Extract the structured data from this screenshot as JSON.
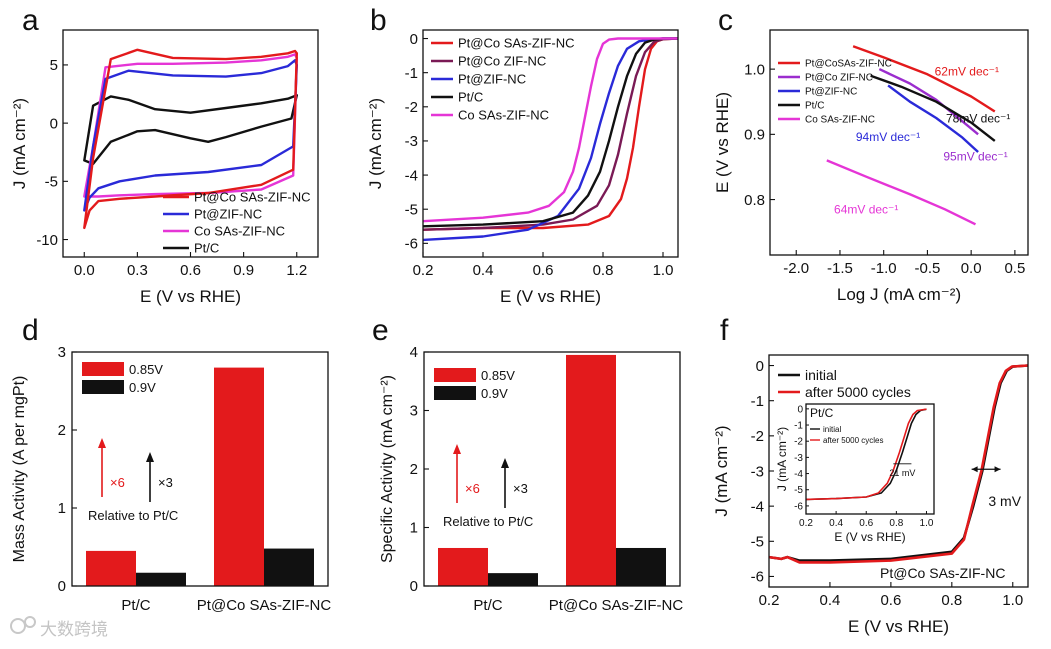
{
  "watermark": "大数跨境",
  "colors": {
    "red": "#e31a1c",
    "purple": "#9b2dce",
    "blue": "#2a2ad8",
    "black": "#111111",
    "magenta": "#e535d6",
    "darkred": "#b0142a"
  },
  "chart_data": [
    {
      "id": "a",
      "type": "line",
      "panel_label": "a",
      "xlabel": "E (V vs RHE)",
      "ylabel": "J (mA cm⁻²)",
      "xlim": [
        -0.12,
        1.32
      ],
      "ylim": [
        -11.5,
        8
      ],
      "xticks": [
        0.0,
        0.3,
        0.6,
        0.9,
        1.2
      ],
      "yticks": [
        5,
        0,
        -5,
        -10
      ],
      "xticklabels": [
        "0.0",
        "0.3",
        "0.6",
        "0.9",
        "1.2"
      ],
      "yticklabels": [
        "5",
        "0",
        "-5",
        "-10"
      ],
      "legend": {
        "position": "bottom-right",
        "entries": [
          "Pt@Co SAs-ZIF-NC",
          "Pt@ZIF-NC",
          "Co SAs-ZIF-NC",
          "Pt/C"
        ]
      },
      "series": [
        {
          "name": "Pt@Co SAs-ZIF-NC",
          "color": "#e31a1c",
          "closed": true,
          "x": [
            0.0,
            0.05,
            0.15,
            0.3,
            0.5,
            0.8,
            1.0,
            1.15,
            1.19,
            1.2,
            1.18,
            1.0,
            0.7,
            0.4,
            0.2,
            0.08,
            0.03,
            0.0
          ],
          "y": [
            -9.0,
            -3.0,
            5.5,
            6.3,
            5.6,
            5.5,
            5.7,
            6.0,
            6.2,
            6.0,
            -4.0,
            -5.3,
            -6.0,
            -6.3,
            -6.5,
            -6.7,
            -7.5,
            -9.0
          ]
        },
        {
          "name": "Pt@ZIF-NC",
          "color": "#2a2ad8",
          "closed": true,
          "x": [
            0.0,
            0.05,
            0.12,
            0.25,
            0.5,
            0.8,
            1.0,
            1.15,
            1.19,
            1.2,
            1.18,
            1.0,
            0.7,
            0.4,
            0.2,
            0.08,
            0.03,
            0.0
          ],
          "y": [
            -7.5,
            -2.0,
            3.8,
            4.5,
            4.1,
            4.0,
            4.3,
            4.9,
            5.4,
            5.0,
            -2.0,
            -3.6,
            -4.2,
            -4.5,
            -5.0,
            -5.6,
            -6.4,
            -7.5
          ]
        },
        {
          "name": "Co SAs-ZIF-NC",
          "color": "#e535d6",
          "closed": true,
          "x": [
            0.0,
            0.05,
            0.12,
            0.3,
            0.5,
            0.8,
            1.0,
            1.15,
            1.19,
            1.2,
            1.18,
            1.0,
            0.7,
            0.4,
            0.2,
            0.08,
            0.03,
            0.0
          ],
          "y": [
            -6.3,
            -2.0,
            4.8,
            5.1,
            5.1,
            5.2,
            5.4,
            5.7,
            5.9,
            5.6,
            -4.5,
            -5.7,
            -6.0,
            -6.1,
            -6.2,
            -6.3,
            -6.3,
            -6.3
          ]
        },
        {
          "name": "Pt/C",
          "color": "#111111",
          "closed": true,
          "x": [
            0.0,
            0.05,
            0.15,
            0.25,
            0.4,
            0.6,
            0.8,
            1.0,
            1.15,
            1.2,
            1.17,
            1.0,
            0.8,
            0.7,
            0.6,
            0.4,
            0.3,
            0.15,
            0.05,
            0.0
          ],
          "y": [
            -3.2,
            1.5,
            2.3,
            2.0,
            1.2,
            0.9,
            1.3,
            1.7,
            2.1,
            2.4,
            0.4,
            -0.3,
            -1.2,
            -1.6,
            -1.3,
            -0.6,
            -0.7,
            -1.6,
            -3.5,
            -3.2
          ]
        }
      ]
    },
    {
      "id": "b",
      "type": "line",
      "panel_label": "b",
      "xlabel": "E (V vs RHE)",
      "ylabel": "J (mA cm⁻²)",
      "xlim": [
        0.2,
        1.05
      ],
      "ylim": [
        -6.4,
        0.25
      ],
      "xticks": [
        0.2,
        0.4,
        0.6,
        0.8,
        1.0
      ],
      "yticks": [
        0,
        -1,
        -2,
        -3,
        -4,
        -5,
        -6
      ],
      "xticklabels": [
        "0.2",
        "0.4",
        "0.6",
        "0.8",
        "1.0"
      ],
      "yticklabels": [
        "0",
        "-1",
        "-2",
        "-3",
        "-4",
        "-5",
        "-6"
      ],
      "legend": {
        "position": "top-left",
        "entries": [
          "Pt@Co SAs-ZIF-NC",
          "Pt@Co ZIF-NC",
          "Pt@ZIF-NC",
          "Pt/C",
          "Co SAs-ZIF-NC"
        ]
      },
      "series": [
        {
          "name": "Pt@Co SAs-ZIF-NC",
          "color": "#e31a1c",
          "x": [
            0.2,
            0.4,
            0.6,
            0.75,
            0.82,
            0.86,
            0.88,
            0.9,
            0.92,
            0.94,
            0.96,
            0.98,
            1.0,
            1.05
          ],
          "y": [
            -5.6,
            -5.55,
            -5.55,
            -5.45,
            -5.2,
            -4.7,
            -4.1,
            -3.2,
            -2.0,
            -0.9,
            -0.3,
            -0.08,
            -0.02,
            0.0
          ]
        },
        {
          "name": "Pt@Co ZIF-NC",
          "color": "#7a1a55",
          "x": [
            0.2,
            0.4,
            0.6,
            0.7,
            0.78,
            0.82,
            0.85,
            0.88,
            0.91,
            0.94,
            0.97,
            1.0,
            1.05
          ],
          "y": [
            -5.6,
            -5.55,
            -5.45,
            -5.3,
            -4.9,
            -4.3,
            -3.4,
            -2.2,
            -1.1,
            -0.4,
            -0.1,
            -0.02,
            0.0
          ]
        },
        {
          "name": "Pt@ZIF-NC",
          "color": "#2a2ad8",
          "x": [
            0.2,
            0.4,
            0.55,
            0.65,
            0.72,
            0.76,
            0.79,
            0.82,
            0.85,
            0.88,
            0.92,
            0.96,
            1.0,
            1.05
          ],
          "y": [
            -5.9,
            -5.8,
            -5.6,
            -5.2,
            -4.4,
            -3.5,
            -2.5,
            -1.6,
            -0.8,
            -0.3,
            -0.08,
            -0.02,
            0.0,
            0.0
          ]
        },
        {
          "name": "Pt/C",
          "color": "#111111",
          "x": [
            0.2,
            0.4,
            0.6,
            0.7,
            0.75,
            0.79,
            0.82,
            0.85,
            0.88,
            0.91,
            0.94,
            0.97,
            1.0,
            1.05
          ],
          "y": [
            -5.5,
            -5.45,
            -5.35,
            -5.1,
            -4.6,
            -3.9,
            -3.0,
            -2.0,
            -1.1,
            -0.45,
            -0.12,
            -0.03,
            0.0,
            0.0
          ]
        },
        {
          "name": "Co SAs-ZIF-NC",
          "color": "#e535d6",
          "x": [
            0.2,
            0.4,
            0.55,
            0.62,
            0.67,
            0.7,
            0.72,
            0.74,
            0.76,
            0.78,
            0.8,
            0.82,
            0.85,
            1.05
          ],
          "y": [
            -5.35,
            -5.25,
            -5.1,
            -4.9,
            -4.5,
            -3.9,
            -3.2,
            -2.3,
            -1.4,
            -0.6,
            -0.15,
            -0.03,
            0.0,
            0.0
          ]
        }
      ]
    },
    {
      "id": "c",
      "type": "line",
      "panel_label": "c",
      "xlabel": "Log J (mA cm⁻²)",
      "ylabel": "E (V vs RHE)",
      "xlim": [
        -2.3,
        0.65
      ],
      "ylim": [
        0.715,
        1.06
      ],
      "xticks": [
        -2.0,
        -1.5,
        -1.0,
        -0.5,
        0.0,
        0.5
      ],
      "yticks": [
        1.0,
        0.9,
        0.8
      ],
      "xticklabels": [
        "-2.0",
        "-1.5",
        "-1.0",
        "-0.5",
        "0.0",
        "0.5"
      ],
      "yticklabels": [
        "1.0",
        "0.9",
        "0.8"
      ],
      "legend": {
        "position": "top-left",
        "entries": [
          "Pt@CoSAs-ZIF-NC",
          "Pt@Co ZIF-NC",
          "Pt@ZIF-NC",
          "Pt/C",
          "Co SAs-ZIF-NC"
        ]
      },
      "annotations": [
        {
          "text": "62mV dec⁻¹",
          "color": "#e31a1c",
          "x": -0.05,
          "y": 0.99
        },
        {
          "text": "78mV dec⁻¹",
          "color": "#111111",
          "x": 0.08,
          "y": 0.918
        },
        {
          "text": "94mV dec⁻¹",
          "color": "#2a2ad8",
          "x": -0.95,
          "y": 0.89
        },
        {
          "text": "95mV dec⁻¹",
          "color": "#9b2dce",
          "x": 0.05,
          "y": 0.86
        },
        {
          "text": "64mV dec⁻¹",
          "color": "#e535d6",
          "x": -1.2,
          "y": 0.779
        }
      ],
      "series": [
        {
          "name": "Pt@CoSAs-ZIF-NC",
          "color": "#e31a1c",
          "x": [
            -1.35,
            -1.0,
            -0.5,
            0.0,
            0.27
          ],
          "y": [
            1.035,
            1.018,
            0.992,
            0.958,
            0.935
          ]
        },
        {
          "name": "Pt@Co ZIF-NC",
          "color": "#9b2dce",
          "x": [
            -1.05,
            -0.7,
            -0.4,
            -0.1,
            0.08
          ],
          "y": [
            1.0,
            0.978,
            0.953,
            0.92,
            0.9
          ]
        },
        {
          "name": "Pt@ZIF-NC",
          "color": "#2a2ad8",
          "x": [
            -0.95,
            -0.7,
            -0.4,
            -0.1,
            0.08
          ],
          "y": [
            0.975,
            0.95,
            0.925,
            0.895,
            0.873
          ]
        },
        {
          "name": "Pt/C",
          "color": "#111111",
          "x": [
            -1.15,
            -0.8,
            -0.4,
            0.0,
            0.27
          ],
          "y": [
            0.99,
            0.973,
            0.95,
            0.918,
            0.89
          ]
        },
        {
          "name": "Co SAs-ZIF-NC",
          "color": "#e535d6",
          "x": [
            -1.65,
            -1.2,
            -0.7,
            -0.3,
            0.05
          ],
          "y": [
            0.86,
            0.835,
            0.808,
            0.785,
            0.762
          ]
        }
      ]
    },
    {
      "id": "d",
      "type": "bar",
      "panel_label": "d",
      "xlabel": "",
      "ylabel": "Mass Activity (A per mgPt)",
      "ylim": [
        0,
        3
      ],
      "yticks": [
        0,
        1,
        2,
        3
      ],
      "yticklabels": [
        "0",
        "1",
        "2",
        "3"
      ],
      "categories": [
        "Pt/C",
        "Pt@Co SAs-ZIF-NC"
      ],
      "legend": {
        "position": "top-left",
        "entries": [
          "0.85V",
          "0.9V"
        ]
      },
      "series": [
        {
          "name": "0.85V",
          "color": "#e31a1c",
          "values": [
            0.45,
            2.8
          ]
        },
        {
          "name": "0.9V",
          "color": "#111111",
          "values": [
            0.17,
            0.48
          ]
        }
      ],
      "annotations": {
        "ratio_red": "×6",
        "ratio_black": "×3",
        "relative": "Relative to Pt/C"
      }
    },
    {
      "id": "e",
      "type": "bar",
      "panel_label": "e",
      "xlabel": "",
      "ylabel": "Specific Activity (mA cm⁻²)",
      "ylim": [
        0,
        4
      ],
      "yticks": [
        0,
        1,
        2,
        3,
        4
      ],
      "yticklabels": [
        "0",
        "1",
        "2",
        "3",
        "4"
      ],
      "categories": [
        "Pt/C",
        "Pt@Co SAs-ZIF-NC"
      ],
      "legend": {
        "position": "top-left",
        "entries": [
          "0.85V",
          "0.9V"
        ]
      },
      "series": [
        {
          "name": "0.85V",
          "color": "#e31a1c",
          "values": [
            0.65,
            3.95
          ]
        },
        {
          "name": "0.9V",
          "color": "#111111",
          "values": [
            0.22,
            0.65
          ]
        }
      ],
      "annotations": {
        "ratio_red": "×6",
        "ratio_black": "×3",
        "relative": "Relative to Pt/C"
      }
    },
    {
      "id": "f",
      "type": "line",
      "panel_label": "f",
      "xlabel": "E (V vs RHE)",
      "ylabel": "J (mA cm⁻²)",
      "xlim": [
        0.2,
        1.05
      ],
      "ylim": [
        -6.3,
        0.3
      ],
      "xticks": [
        0.2,
        0.4,
        0.6,
        0.8,
        1.0
      ],
      "yticks": [
        0,
        -1,
        -2,
        -3,
        -4,
        -5,
        -6
      ],
      "xticklabels": [
        "0.2",
        "0.4",
        "0.6",
        "0.8",
        "1.0"
      ],
      "yticklabels": [
        "0",
        "-1",
        "-2",
        "-3",
        "-4",
        "-5",
        "-6"
      ],
      "legend": {
        "position": "top-left",
        "entries": [
          "initial",
          "after 5000 cycles"
        ]
      },
      "annotations": {
        "shift": "3 mV",
        "catalyst": "Pt@Co SAs-ZIF-NC"
      },
      "series": [
        {
          "name": "initial",
          "color": "#111111",
          "x": [
            0.2,
            0.24,
            0.26,
            0.3,
            0.4,
            0.6,
            0.8,
            0.84,
            0.87,
            0.9,
            0.92,
            0.94,
            0.96,
            0.98,
            1.0,
            1.05
          ],
          "y": [
            -5.45,
            -5.5,
            -5.45,
            -5.55,
            -5.55,
            -5.5,
            -5.3,
            -4.9,
            -4.0,
            -3.0,
            -2.1,
            -1.2,
            -0.5,
            -0.15,
            -0.03,
            0.0
          ]
        },
        {
          "name": "after 5000 cycles",
          "color": "#e31a1c",
          "x": [
            0.2,
            0.24,
            0.26,
            0.3,
            0.4,
            0.6,
            0.8,
            0.84,
            0.867,
            0.897,
            0.917,
            0.937,
            0.957,
            0.977,
            0.997,
            1.05
          ],
          "y": [
            -5.45,
            -5.5,
            -5.45,
            -5.6,
            -5.6,
            -5.55,
            -5.35,
            -4.95,
            -4.0,
            -3.0,
            -2.1,
            -1.2,
            -0.5,
            -0.15,
            -0.03,
            0.0
          ]
        }
      ],
      "inset": {
        "title": "Pt/C",
        "xlabel": "E (V vs RHE)",
        "ylabel": "J (mA cm⁻²)",
        "xlim": [
          0.2,
          1.05
        ],
        "ylim": [
          -6.5,
          0.3
        ],
        "xticks": [
          0.2,
          0.4,
          0.6,
          0.8,
          1.0
        ],
        "yticks": [
          0,
          -1,
          -2,
          -3,
          -4,
          -5,
          -6
        ],
        "xticklabels": [
          "0.2",
          "0.4",
          "0.6",
          "0.8",
          "1.0"
        ],
        "yticklabels": [
          "0",
          "-1",
          "-2",
          "-3",
          "-4",
          "-5",
          "-6"
        ],
        "legend": {
          "entries": [
            "initial",
            "after 5000 cycles"
          ]
        },
        "annotation": "21 mV",
        "series": [
          {
            "name": "initial",
            "color": "#111111",
            "x": [
              0.2,
              0.4,
              0.6,
              0.7,
              0.76,
              0.8,
              0.84,
              0.87,
              0.9,
              0.93,
              0.96,
              1.0
            ],
            "y": [
              -5.6,
              -5.55,
              -5.45,
              -5.2,
              -4.6,
              -3.8,
              -2.7,
              -1.8,
              -0.9,
              -0.35,
              -0.1,
              -0.02
            ]
          },
          {
            "name": "after 5000 cycles",
            "color": "#e31a1c",
            "x": [
              0.2,
              0.4,
              0.6,
              0.68,
              0.74,
              0.78,
              0.82,
              0.85,
              0.88,
              0.91,
              0.94,
              1.0
            ],
            "y": [
              -5.6,
              -5.55,
              -5.45,
              -5.2,
              -4.6,
              -3.8,
              -2.7,
              -1.8,
              -0.9,
              -0.35,
              -0.1,
              -0.02
            ]
          }
        ]
      }
    }
  ]
}
